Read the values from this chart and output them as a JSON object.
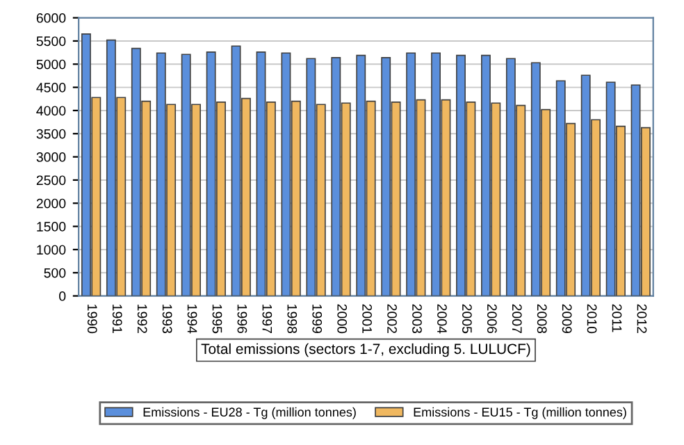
{
  "chart_data": {
    "type": "bar",
    "xlabel": "Total emissions (sectors 1-7, excluding 5. LULUCF)",
    "categories": [
      "1990",
      "1991",
      "1992",
      "1993",
      "1994",
      "1995",
      "1996",
      "1997",
      "1998",
      "1999",
      "2000",
      "2001",
      "2002",
      "2003",
      "2004",
      "2005",
      "2006",
      "2007",
      "2008",
      "2009",
      "2010",
      "2011",
      "2012"
    ],
    "series": [
      {
        "name": "Emissions - EU28 - Tg (million tonnes)",
        "color": "#5b8fdc",
        "values": [
          5650,
          5520,
          5340,
          5240,
          5210,
          5260,
          5390,
          5260,
          5240,
          5120,
          5140,
          5190,
          5140,
          5240,
          5240,
          5190,
          5190,
          5120,
          5030,
          4640,
          4760,
          4610,
          4550
        ]
      },
      {
        "name": "Emissions - EU15 - Tg (million tonnes)",
        "color": "#f0b860",
        "values": [
          4280,
          4280,
          4200,
          4130,
          4130,
          4180,
          4260,
          4180,
          4200,
          4130,
          4160,
          4200,
          4180,
          4230,
          4230,
          4180,
          4160,
          4110,
          4020,
          3720,
          3800,
          3660,
          3630
        ]
      }
    ],
    "ylim": [
      0,
      6000
    ],
    "yticks": [
      0,
      500,
      1000,
      1500,
      2000,
      2500,
      3000,
      3500,
      4000,
      4500,
      5000,
      5500,
      6000
    ],
    "grid": "y",
    "legend": "bottom"
  }
}
